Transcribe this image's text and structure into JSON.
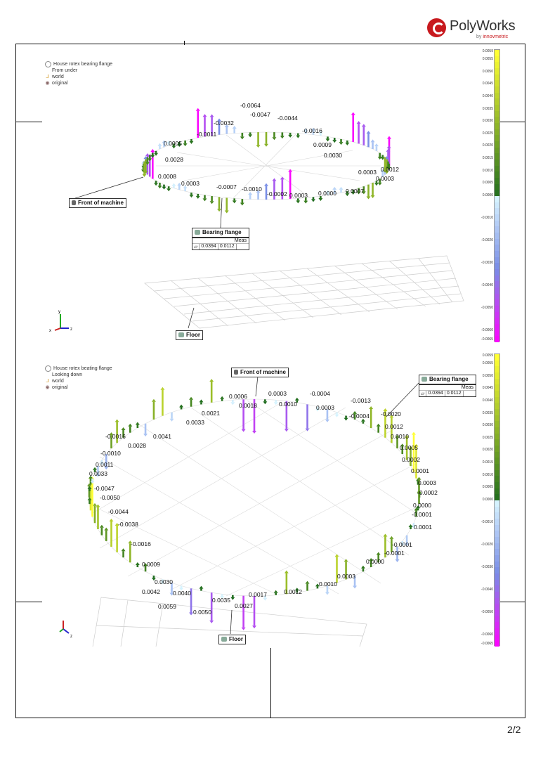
{
  "logo": {
    "name": "PolyWorks",
    "by": "by",
    "brand": "innovmetric"
  },
  "page": {
    "number": "2/2"
  },
  "colors": {
    "brand": "#c8191e",
    "scale_top": "#ffff33",
    "scale_zero_pos": "#1d6b1d",
    "scale_zero_neg": "#d9f6ff",
    "scale_bottom": "#ff00ff"
  },
  "top_view": {
    "legend": {
      "title": "House rotex bearing flange",
      "view": "From under",
      "world": "world",
      "original": "original"
    },
    "front_label": "Front of machine",
    "bearing_label": "Bearing flange",
    "floor_label": "Floor",
    "meas": {
      "header": "Meas",
      "tol": "0.0394",
      "value": "0.0112"
    },
    "values": [
      "-0.0064",
      "-0.0047",
      "-0.0044",
      "-0.0032",
      "-0.0016",
      "-0.0011",
      "0.0009",
      "0.0005",
      "0.0030",
      "0.0028",
      "0.0012",
      "0.0008",
      "0.0003",
      "0.0003",
      "-0.0007",
      "-0.0010",
      "-0.0002",
      "0.0003",
      "0.0000",
      "0.0007",
      "0.0003"
    ],
    "scale_labels": [
      "0.0059",
      "0.0055",
      "0.0050",
      "0.0045",
      "0.0040",
      "0.0035",
      "0.0030",
      "0.0025",
      "0.0020",
      "0.0015",
      "0.0010",
      "0.0005",
      "0.0000",
      "-0.0010",
      "-0.0020",
      "-0.0030",
      "-0.0040",
      "-0.0050",
      "-0.0060",
      "-0.0065"
    ]
  },
  "bottom_view": {
    "legend": {
      "title": "House rotex beating flange",
      "view": "Looking down",
      "world": "world",
      "original": "original"
    },
    "front_label": "Front of machine",
    "bearing_label": "Bearing flange",
    "floor_label": "Floor",
    "meas": {
      "header": "Meas",
      "tol": "0.0394",
      "value": "0.0112"
    },
    "values": [
      "0.0006",
      "0.0018",
      "0.0003",
      "0.0010",
      "-0.0004",
      "0.0003",
      "-0.0013",
      "-0.0004",
      "-0.0020",
      "0.0021",
      "0.0033",
      "0.0012",
      "0.0010",
      "0.0005",
      "-0.0016",
      "0.0028",
      "0.0041",
      "-0.0010",
      "0.0002",
      "0.0011",
      "0.0001",
      "0.0033",
      "0.0003",
      "-0.0002",
      "-0.0047",
      "-0.0050",
      "0.0000",
      "-0.0001",
      "-0.0044",
      "0.0001",
      "-0.0038",
      "-0.0001",
      "-0.0016",
      "-0.0001",
      "0.0000",
      "0.0009",
      "0.0003",
      "0.0030",
      "0.0010",
      "0.0042",
      "0.0040",
      "0.0017",
      "0.0012",
      "0.0035",
      "0.0027",
      "0.0059",
      "0.0050"
    ],
    "scale_labels": [
      "0.0059",
      "0.0055",
      "0.0050",
      "0.0045",
      "0.0040",
      "0.0035",
      "0.0030",
      "0.0025",
      "0.0020",
      "0.0015",
      "0.0010",
      "0.0005",
      "0.0000",
      "-0.0010",
      "-0.0020",
      "-0.0030",
      "-0.0040",
      "-0.0050",
      "-0.0060",
      "-0.0065"
    ]
  }
}
